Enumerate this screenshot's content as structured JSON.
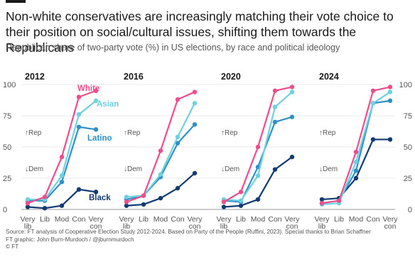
{
  "header": {
    "title": "Non-white conservatives are increasingly matching their vote choice to their position on social/cultural issues, shifting them towards the Republicans",
    "subtitle": "Republican share of two-party vote (%) in US elections, by race and political ideology"
  },
  "footer": {
    "source_line1": "Source: FT analysis of Cooperative Election Study 2012-2024. Based on Party of the People (Ruffini, 2023). Special thanks to Brian Schaffner",
    "source_line2": "FT graphic: John Burn-Murdoch / @jburnmurdoch",
    "source_line3": "© FT"
  },
  "chart_data": {
    "type": "line",
    "categories": [
      "Very lib",
      "Lib",
      "Mod",
      "Con",
      "Very con"
    ],
    "ylim": [
      0,
      100
    ],
    "yticks": [
      0,
      25,
      50,
      75,
      100
    ],
    "annotations": {
      "rep": "↑Rep",
      "dem": "↓Dem"
    },
    "colors": {
      "White": "#ee4d8c",
      "Asian": "#6fd0e0",
      "Latino": "#2f8fc9",
      "Black": "#123a73"
    },
    "panels": [
      {
        "year": "2012",
        "series": [
          {
            "name": "White",
            "values": [
              5,
              10,
              42,
              90,
              95
            ]
          },
          {
            "name": "Asian",
            "values": [
              8,
              8,
              27,
              76,
              87
            ]
          },
          {
            "name": "Latino",
            "values": [
              7,
              7,
              22,
              66,
              64
            ]
          },
          {
            "name": "Black",
            "values": [
              2,
              1,
              3,
              16,
              14
            ]
          }
        ]
      },
      {
        "year": "2016",
        "series": [
          {
            "name": "White",
            "values": [
              6,
              11,
              47,
              88,
              94
            ]
          },
          {
            "name": "Asian",
            "values": [
              10,
              11,
              28,
              58,
              85
            ]
          },
          {
            "name": "Latino",
            "values": [
              8,
              11,
              26,
              53,
              68
            ]
          },
          {
            "name": "Black",
            "values": [
              3,
              4,
              9,
              17,
              29
            ]
          }
        ]
      },
      {
        "year": "2020",
        "series": [
          {
            "name": "White",
            "values": [
              6,
              14,
              50,
              95,
              98
            ]
          },
          {
            "name": "Asian",
            "values": [
              8,
              7,
              27,
              82,
              94
            ]
          },
          {
            "name": "Latino",
            "values": [
              7,
              6,
              34,
              70,
              74
            ]
          },
          {
            "name": "Black",
            "values": [
              2,
              3,
              8,
              32,
              42
            ]
          }
        ]
      },
      {
        "year": "2024",
        "series": [
          {
            "name": "White",
            "values": [
              5,
              7,
              46,
              95,
              98
            ]
          },
          {
            "name": "Asian",
            "values": [
              4,
              5,
              38,
              85,
              94
            ]
          },
          {
            "name": "Latino",
            "values": [
              5,
              7,
              31,
              85,
              87
            ]
          },
          {
            "name": "Black",
            "values": [
              8,
              9,
              25,
              56,
              56
            ]
          }
        ]
      }
    ]
  }
}
